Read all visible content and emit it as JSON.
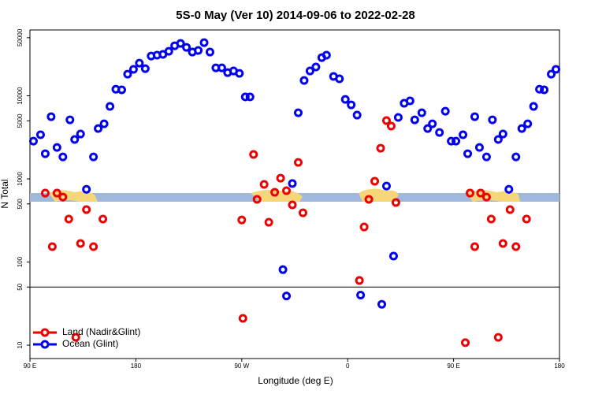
{
  "chart_data": {
    "type": "scatter",
    "title": "5S-0 May (Ver 10)   2014-09-06 to 2022-02-28",
    "x_label": "Longitude (deg E)",
    "y_label": "N Total",
    "log_y": true,
    "xlim": [
      90,
      540
    ],
    "xticks": [
      {
        "value": 90,
        "label": "90 E"
      },
      180,
      {
        "value": 270,
        "label": "90 W"
      },
      {
        "value": 360,
        "label": "0"
      },
      {
        "value": 450,
        "label": "90 E"
      },
      {
        "value": 540,
        "label": "180"
      }
    ],
    "ylim": [
      6.9,
      62000
    ],
    "yticks": [
      10,
      50,
      100,
      500,
      1000,
      5000,
      10000,
      50000
    ],
    "reference_line": 50,
    "legend_position": "bottom-left",
    "series": [
      {
        "name": "Land (Nadir&Glint)",
        "color": "#ee0000",
        "x": [
          103,
          109,
          113,
          118,
          123,
          129,
          133,
          138,
          144,
          152,
          270,
          271,
          280,
          283,
          289,
          293,
          298,
          303,
          308,
          313,
          318,
          322,
          370,
          374,
          378,
          383,
          388,
          393,
          397,
          401,
          460,
          464,
          468,
          473,
          478,
          482,
          488,
          492,
          498,
          503,
          512
        ],
        "values": [
          675,
          153,
          675,
          605,
          329,
          12.4,
          167,
          427,
          153,
          329,
          321,
          21,
          1970,
          567,
          859,
          301,
          690,
          1020,
          721,
          487,
          1580,
          391,
          60,
          264,
          567,
          937,
          2340,
          5030,
          4320,
          520,
          10.7,
          675,
          153,
          675,
          605,
          329,
          12.4,
          167,
          427,
          153,
          329
        ]
      },
      {
        "name": "Ocean (Glint)",
        "color": "#0000ee",
        "x": [
          93,
          99,
          103,
          108,
          113,
          118,
          124,
          128,
          133,
          138,
          144,
          148,
          153,
          158,
          163,
          168,
          173,
          178,
          183,
          188,
          193,
          198,
          203,
          208,
          213,
          218,
          223,
          228,
          233,
          238,
          243,
          248,
          253,
          258,
          263,
          268,
          273,
          277,
          305,
          308,
          313,
          318,
          323,
          328,
          333,
          338,
          342,
          348,
          353,
          358,
          363,
          368,
          371,
          389,
          393,
          399,
          403,
          408,
          413,
          417,
          423,
          428,
          432,
          438,
          443,
          448,
          452,
          458,
          462,
          468,
          472,
          478,
          483,
          488,
          492,
          497,
          503,
          508,
          513,
          518,
          523,
          527,
          533,
          537
        ],
        "values": [
          2850,
          3400,
          2010,
          5600,
          2390,
          1840,
          5140,
          2980,
          3470,
          750,
          1840,
          4040,
          4600,
          7450,
          12000,
          11800,
          18200,
          20800,
          24700,
          21200,
          30100,
          30800,
          31500,
          34300,
          40000,
          42700,
          38300,
          33600,
          35100,
          43600,
          33600,
          21700,
          21700,
          19000,
          19900,
          18600,
          9700,
          9700,
          81,
          39,
          880,
          6250,
          15300,
          19900,
          22200,
          28800,
          30800,
          17100,
          16000,
          9060,
          7780,
          5860,
          40,
          31,
          820,
          118,
          5490,
          8130,
          8700,
          5140,
          6250,
          4040,
          4600,
          3620,
          6530,
          2850,
          2850,
          3400,
          2010,
          5600,
          2390,
          1840,
          5140,
          2980,
          3470,
          750,
          1840,
          4040,
          4600,
          7450,
          12000,
          11800,
          18200,
          20800
        ]
      }
    ]
  }
}
